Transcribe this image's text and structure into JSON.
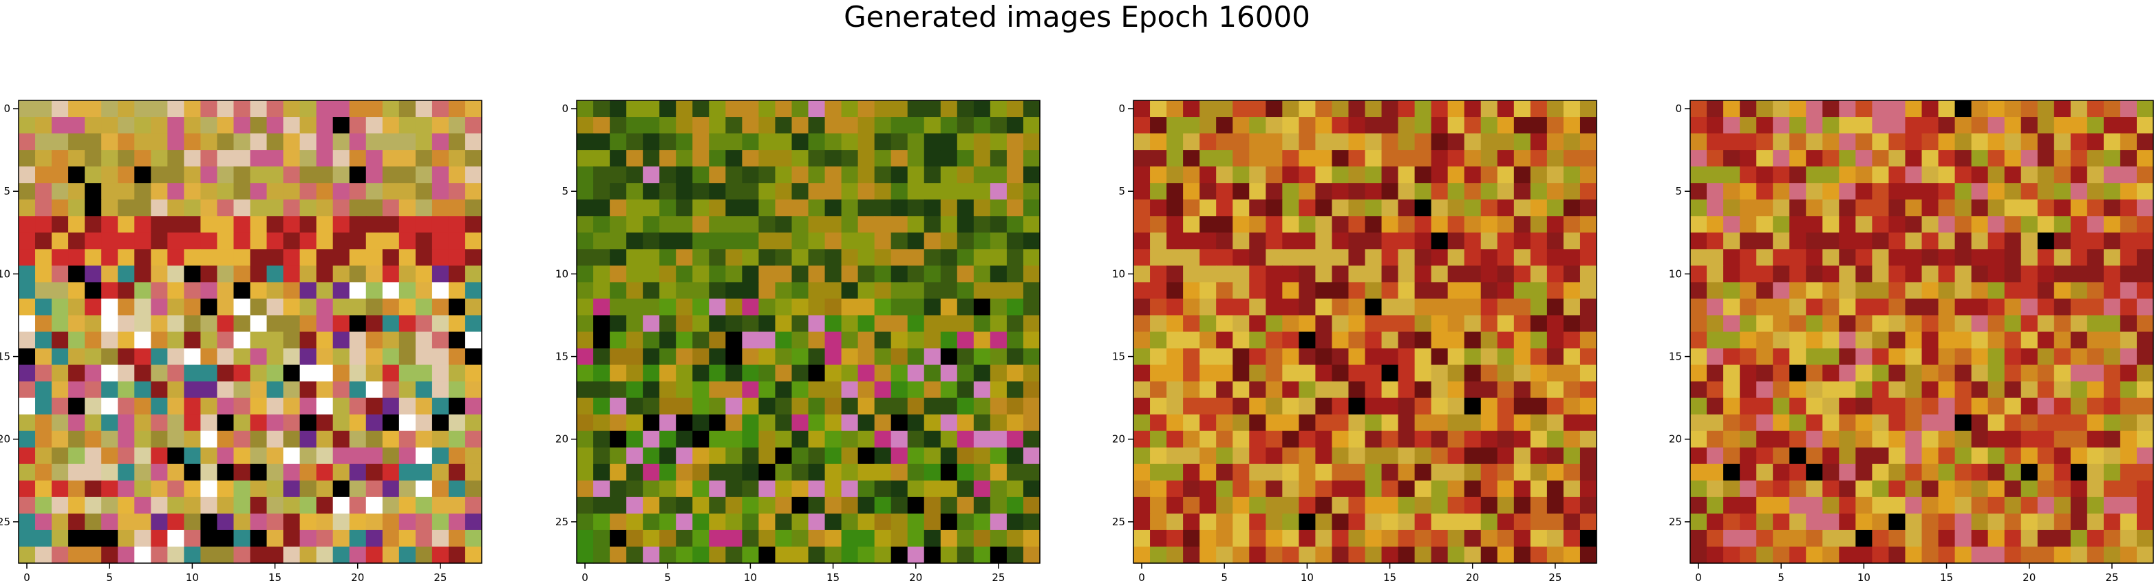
{
  "figure": {
    "title": "Generated images Epoch 16000"
  },
  "chart_data": [
    {
      "type": "heatmap",
      "title": "",
      "xlabel": "",
      "ylabel": "",
      "grid": false,
      "xlim": [
        0,
        27
      ],
      "ylim": [
        27,
        0
      ],
      "xticks": [
        0,
        5,
        10,
        15,
        20,
        25
      ],
      "yticks": [
        0,
        5,
        10,
        15,
        20,
        25
      ],
      "xticklabels": [
        "0",
        "5",
        "10",
        "15",
        "20",
        "25"
      ],
      "yticklabels": [
        "0",
        "5",
        "10",
        "15",
        "20",
        "25"
      ],
      "palette": [
        "#c8a93a",
        "#d18a2e",
        "#e0b040",
        "#b9b040",
        "#d06c6c",
        "#c85a8c",
        "#b8b060",
        "#e3c9b0",
        "#9a8a30",
        "#cf2b2b",
        "#8a1a1a",
        "#e6b53a",
        "#9fbf5a",
        "#2e8a8a",
        "#d9d0a0",
        "#6a2a8a",
        "#000000",
        "#ffffff"
      ],
      "style": "pinkish"
    },
    {
      "type": "heatmap",
      "title": "",
      "xlabel": "",
      "ylabel": "",
      "grid": false,
      "xlim": [
        0,
        27
      ],
      "ylim": [
        27,
        0
      ],
      "xticks": [
        0,
        5,
        10,
        15,
        20,
        25
      ],
      "yticks": [
        0,
        5,
        10,
        15,
        20,
        25
      ],
      "xticklabels": [
        "0",
        "5",
        "10",
        "15",
        "20",
        "25"
      ],
      "yticklabels": [
        "0",
        "5",
        "10",
        "15",
        "20",
        "25"
      ],
      "palette": [
        "#6a8a10",
        "#4a7a10",
        "#8a9a10",
        "#a08a10",
        "#c08a20",
        "#3a5a10",
        "#2a4a10",
        "#1a3a10",
        "#b0a010",
        "#d0a020",
        "#5a9a10",
        "#3a8a10",
        "#000000",
        "#c03080",
        "#d080c0",
        "#a07a10"
      ],
      "style": "greenish"
    },
    {
      "type": "heatmap",
      "title": "",
      "xlabel": "",
      "ylabel": "",
      "grid": false,
      "xlim": [
        0,
        27
      ],
      "ylim": [
        27,
        0
      ],
      "xticks": [
        0,
        5,
        10,
        15,
        20,
        25
      ],
      "yticks": [
        0,
        5,
        10,
        15,
        20,
        25
      ],
      "xticklabels": [
        "0",
        "5",
        "10",
        "15",
        "20",
        "25"
      ],
      "yticklabels": [
        "0",
        "5",
        "10",
        "15",
        "20",
        "25"
      ],
      "palette": [
        "#d08a20",
        "#c86a20",
        "#e0a020",
        "#b09020",
        "#c03020",
        "#a01a1a",
        "#d0b040",
        "#8a1a1a",
        "#e0c040",
        "#9aa020",
        "#c84a20",
        "#6a1010",
        "#000000",
        "#ffffff"
      ],
      "style": "orange"
    },
    {
      "type": "heatmap",
      "title": "",
      "xlabel": "",
      "ylabel": "",
      "grid": false,
      "xlim": [
        0,
        27
      ],
      "ylim": [
        27,
        0
      ],
      "xticks": [
        0,
        5,
        10,
        15,
        20,
        25
      ],
      "yticks": [
        0,
        5,
        10,
        15,
        20,
        25
      ],
      "xticklabels": [
        "0",
        "5",
        "10",
        "15",
        "20",
        "25"
      ],
      "yticklabels": [
        "0",
        "5",
        "10",
        "15",
        "20",
        "25"
      ],
      "palette": [
        "#d08a20",
        "#c86a20",
        "#e0a020",
        "#b09020",
        "#c03020",
        "#a01a1a",
        "#d0b040",
        "#8a1a1a",
        "#e0c040",
        "#9aa020",
        "#c84a20",
        "#d06c80",
        "#000000",
        "#2020c0"
      ],
      "style": "orange"
    }
  ]
}
